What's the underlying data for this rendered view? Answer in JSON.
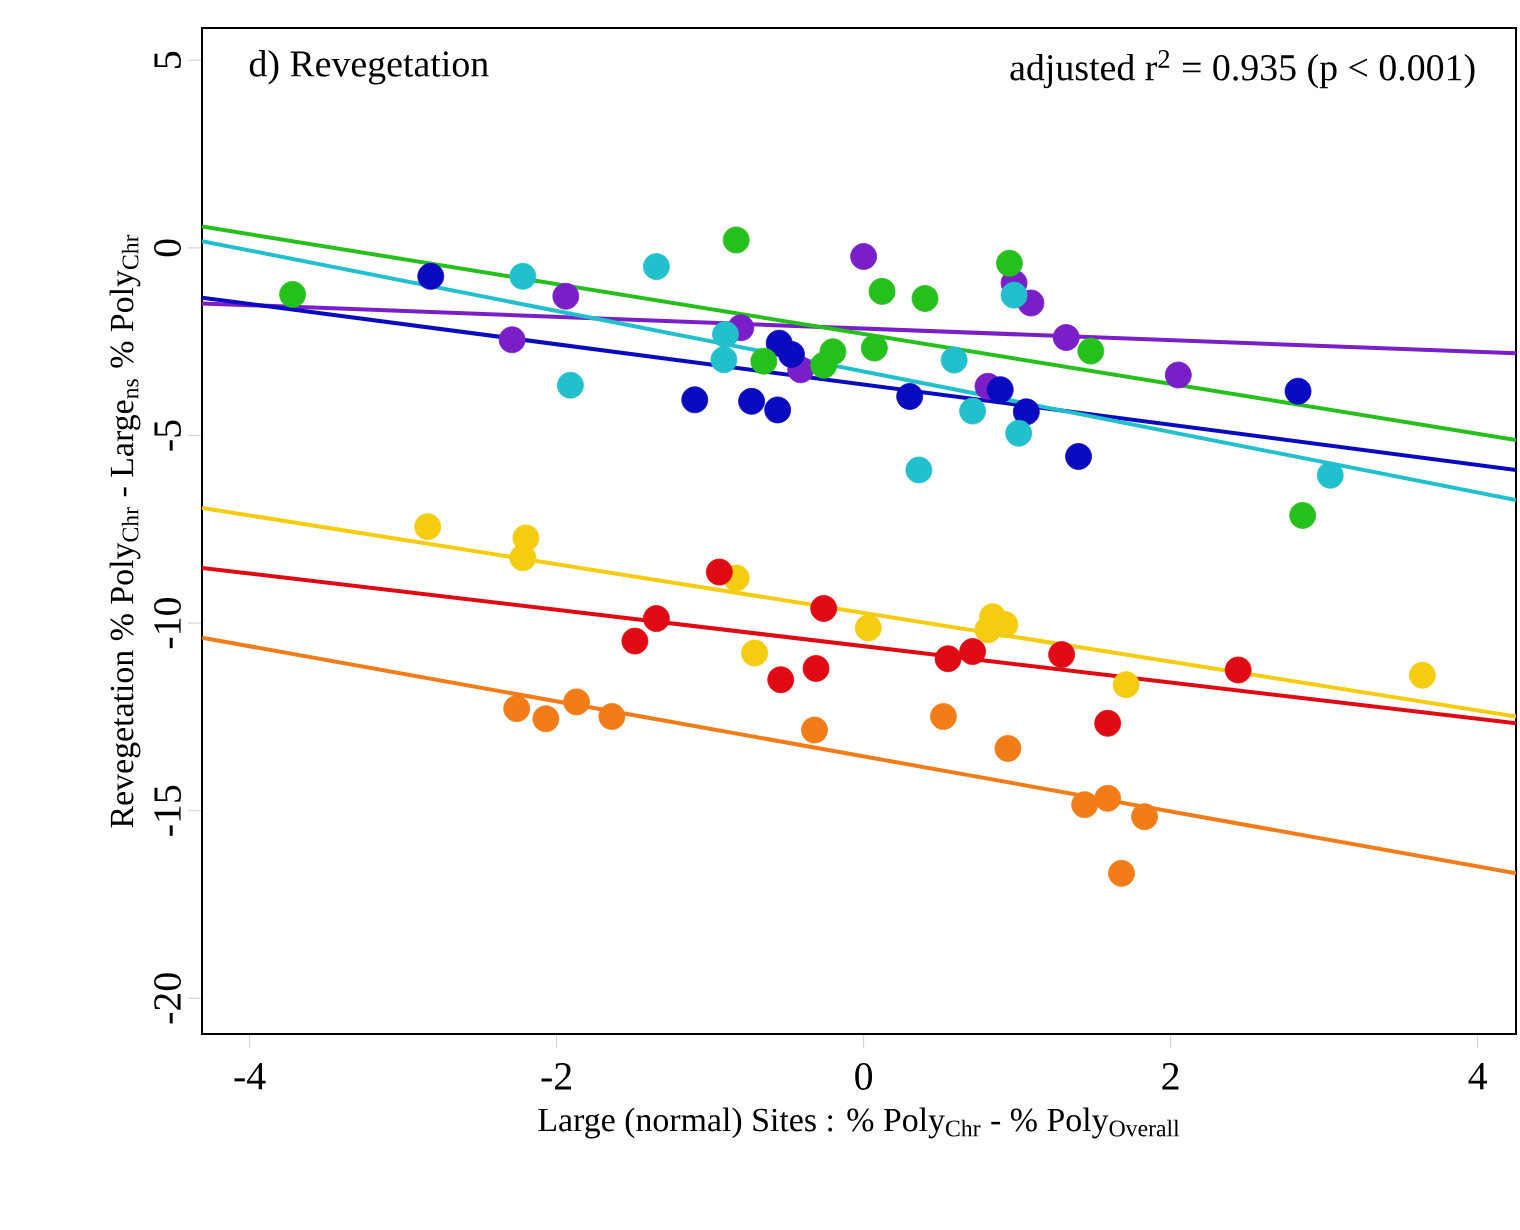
{
  "chart_data": {
    "type": "scatter",
    "xlabel": "Large (normal) Sites :  % Poly$_{Chr}$ - % Poly$_{Overall}$",
    "ylabel": "Revegetation % Poly$_{Chr}$ - Large$_{ns}$ % Poly$_{Chr}$",
    "annotations": [
      "d) Revegetation",
      "adjusted r$^{2}$ = 0.935 (p < 0.001)"
    ],
    "xlim": [
      -4.31,
      4.25
    ],
    "ylim": [
      -20.95,
      5.86
    ],
    "xticks": [
      -4,
      -2,
      0,
      2,
      4
    ],
    "yticks": [
      -20,
      -15,
      -10,
      -5,
      0,
      5
    ],
    "marker": "circle",
    "grid": false,
    "series": [
      {
        "color": "#7a1fc8",
        "x": [
          -1.94,
          -2.29,
          0.0,
          -0.8,
          -0.41,
          0.98,
          1.09,
          1.32,
          2.05,
          0.81
        ],
        "values": [
          -1.29,
          -2.45,
          -0.23,
          -2.13,
          -3.25,
          -0.94,
          -1.47,
          -2.39,
          -3.39,
          -3.69
        ]
      },
      {
        "color": "#0a0ac0",
        "x": [
          -2.82,
          -0.55,
          -0.47,
          -1.1,
          -0.73,
          -0.56,
          2.83,
          0.3,
          0.89,
          1.06,
          1.4
        ],
        "values": [
          -0.76,
          -2.54,
          -2.84,
          -4.05,
          -4.09,
          -4.32,
          -3.82,
          -3.96,
          -3.78,
          -4.37,
          -5.56
        ]
      },
      {
        "color": "#22c0cc",
        "x": [
          -2.22,
          -1.35,
          -1.91,
          -0.9,
          -0.91,
          0.98,
          0.59,
          0.71,
          1.01,
          0.36,
          3.04
        ],
        "values": [
          -0.76,
          -0.5,
          -3.66,
          -2.31,
          -2.98,
          -1.26,
          -2.99,
          -4.35,
          -4.94,
          -5.92,
          -6.06
        ]
      },
      {
        "color": "#26c01c",
        "x": [
          -3.72,
          -0.83,
          -0.65,
          -0.2,
          -0.26,
          0.07,
          0.12,
          0.4,
          0.95,
          1.48,
          2.86
        ],
        "values": [
          -1.24,
          0.21,
          -3.02,
          -2.77,
          -3.13,
          -2.67,
          -1.16,
          -1.35,
          -0.41,
          -2.75,
          -7.13
        ]
      },
      {
        "color": "#f5cc10",
        "x": [
          -2.84,
          -2.2,
          -2.22,
          -0.83,
          0.03,
          -0.71,
          0.84,
          0.92,
          0.81,
          1.71,
          3.64
        ],
        "values": [
          -7.43,
          -7.73,
          -8.26,
          -8.8,
          -10.13,
          -10.8,
          -9.83,
          -10.04,
          -10.18,
          -11.64,
          -11.39
        ]
      },
      {
        "color": "#e00a14",
        "x": [
          -0.94,
          -0.26,
          -1.35,
          -1.49,
          -0.54,
          -0.31,
          0.55,
          0.71,
          1.29,
          1.59,
          2.44
        ],
        "values": [
          -8.64,
          -9.61,
          -9.88,
          -10.48,
          -11.51,
          -11.21,
          -10.95,
          -10.76,
          -10.84,
          -12.67,
          -11.25
        ]
      },
      {
        "color": "#f27c18",
        "x": [
          -2.26,
          -2.07,
          -1.87,
          -1.64,
          -0.32,
          0.52,
          0.94,
          1.44,
          1.59,
          1.83,
          1.68
        ],
        "values": [
          -12.28,
          -12.55,
          -12.1,
          -12.49,
          -12.85,
          -12.49,
          -13.34,
          -14.84,
          -14.67,
          -15.16,
          -16.67
        ]
      },
      {
        "type": "line",
        "marker": "none",
        "color": "#7a1fc8",
        "x": [
          -4.31,
          4.25
        ],
        "values": [
          -1.48,
          -2.81
        ]
      },
      {
        "type": "line",
        "marker": "none",
        "color": "#0a0ac0",
        "x": [
          -4.31,
          4.25
        ],
        "values": [
          -1.33,
          -5.92
        ]
      },
      {
        "type": "line",
        "marker": "none",
        "color": "#22c0cc",
        "x": [
          -4.31,
          4.25
        ],
        "values": [
          0.18,
          -6.72
        ]
      },
      {
        "type": "line",
        "marker": "none",
        "color": "#26c01c",
        "x": [
          -4.31,
          4.25
        ],
        "values": [
          0.57,
          -5.12
        ]
      },
      {
        "type": "line",
        "marker": "none",
        "color": "#f5cc10",
        "x": [
          -4.31,
          4.25
        ],
        "values": [
          -6.93,
          -12.49
        ]
      },
      {
        "type": "line",
        "marker": "none",
        "color": "#e00a14",
        "x": [
          -4.31,
          4.25
        ],
        "values": [
          -8.53,
          -12.67
        ]
      },
      {
        "type": "line",
        "marker": "none",
        "color": "#f27c18",
        "x": [
          -4.31,
          4.25
        ],
        "values": [
          -10.39,
          -16.67
        ]
      }
    ]
  }
}
